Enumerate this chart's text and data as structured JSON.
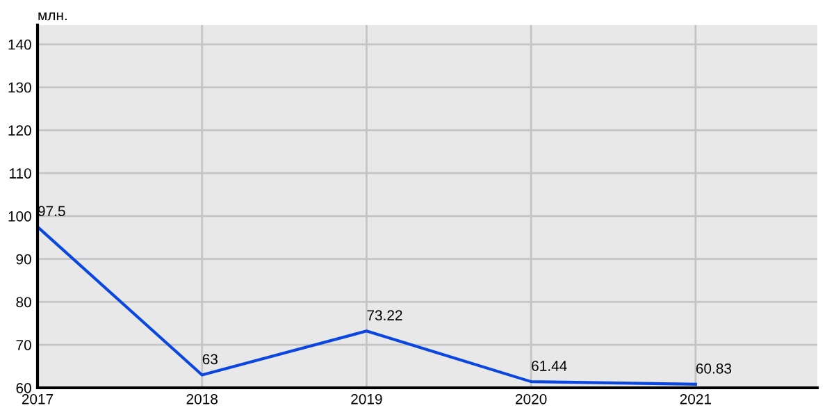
{
  "chart_data": {
    "type": "line",
    "ylabel": "млн.",
    "x": [
      2017,
      2018,
      2019,
      2020,
      2021
    ],
    "series": [
      {
        "color": "#0a46e0",
        "values": [
          97.5,
          63,
          73.22,
          61.44,
          60.83
        ]
      }
    ],
    "xlim": [
      2017,
      2021.74
    ],
    "xticks": [
      2017,
      2018,
      2019,
      2020,
      2021
    ],
    "ylim": [
      60,
      144.5
    ],
    "yticks": [
      60,
      70,
      80,
      90,
      100,
      110,
      120,
      130,
      140
    ],
    "grid": true,
    "data_labels": true,
    "marker": "none",
    "line_style": "solid"
  }
}
